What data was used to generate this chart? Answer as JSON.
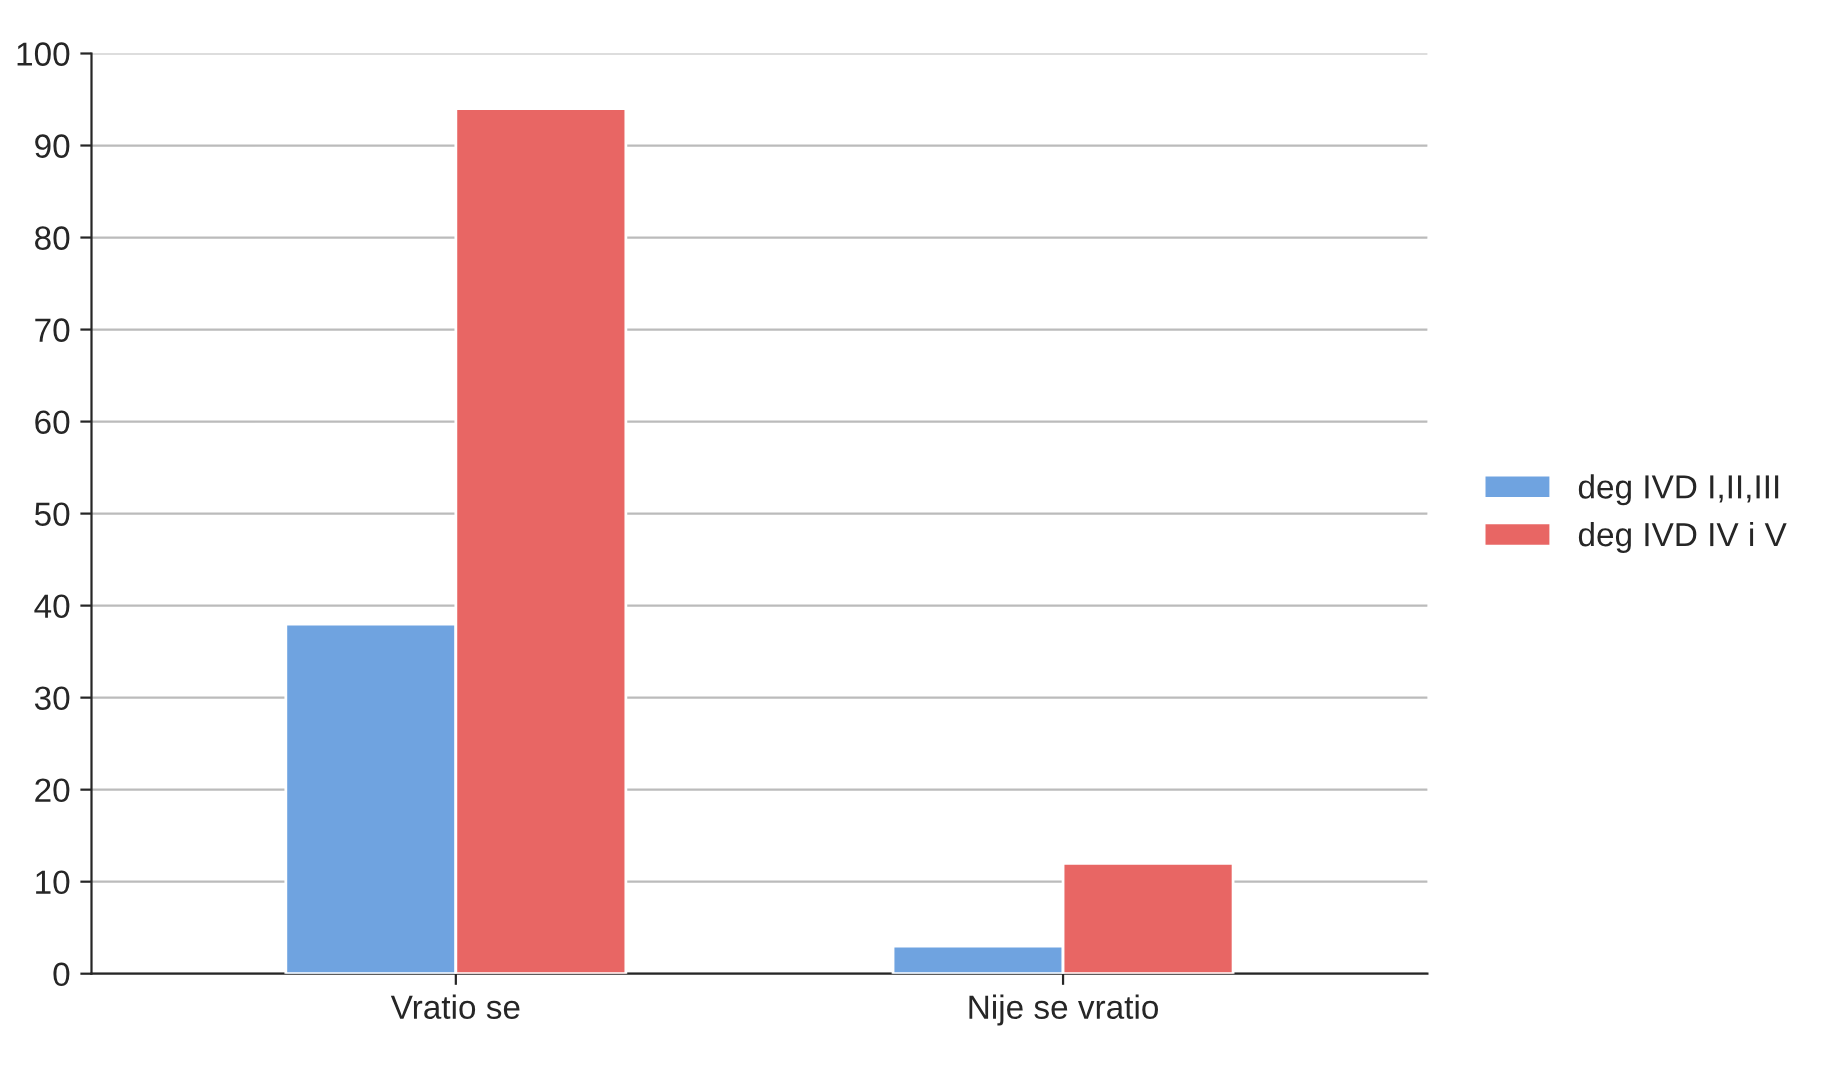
{
  "chart_data": {
    "type": "bar",
    "categories": [
      "Vratio se",
      "Nije se vratio"
    ],
    "series": [
      {
        "name": "deg IVD I,II,III",
        "color": "#6fa3e0",
        "values": [
          38,
          3
        ]
      },
      {
        "name": "deg IVD IV i V",
        "color": "#e86664",
        "values": [
          94,
          12
        ]
      }
    ],
    "ylim": [
      0,
      100
    ],
    "yticks": [
      0,
      10,
      20,
      30,
      40,
      50,
      60,
      70,
      80,
      90,
      100
    ],
    "grid": "y",
    "legend": "right"
  }
}
